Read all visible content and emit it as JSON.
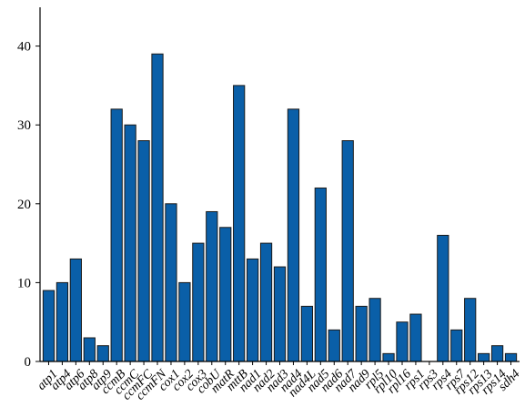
{
  "chart_data": {
    "type": "bar",
    "categories": [
      "atp1",
      "atp4",
      "atp6",
      "atp8",
      "atp9",
      "ccmB",
      "ccmC",
      "ccmFC",
      "ccmFN",
      "cox1",
      "cox2",
      "cox3",
      "cobU",
      "matR",
      "mttB",
      "nad1",
      "nad2",
      "nad3",
      "nad4",
      "nad4L",
      "nad5",
      "nad6",
      "nad7",
      "nad9",
      "rpl5",
      "rpl10",
      "rpl16",
      "rps1",
      "rps3",
      "rps4",
      "rps7",
      "rps12",
      "rps13",
      "rps14",
      "sdh4"
    ],
    "values": [
      9,
      10,
      13,
      3,
      2,
      32,
      30,
      28,
      39,
      20,
      10,
      15,
      19,
      17,
      35,
      13,
      15,
      12,
      32,
      7,
      22,
      4,
      28,
      7,
      8,
      1,
      5,
      6,
      0,
      16,
      4,
      8,
      1,
      2,
      1
    ],
    "yticks": [
      0,
      10,
      20,
      30,
      40
    ],
    "ylim": [
      0,
      45
    ],
    "bar_color": "#0a5fa8",
    "bar_edge_color": "#1a1a1a",
    "grid": false,
    "title": "",
    "xlabel": "",
    "ylabel": ""
  }
}
